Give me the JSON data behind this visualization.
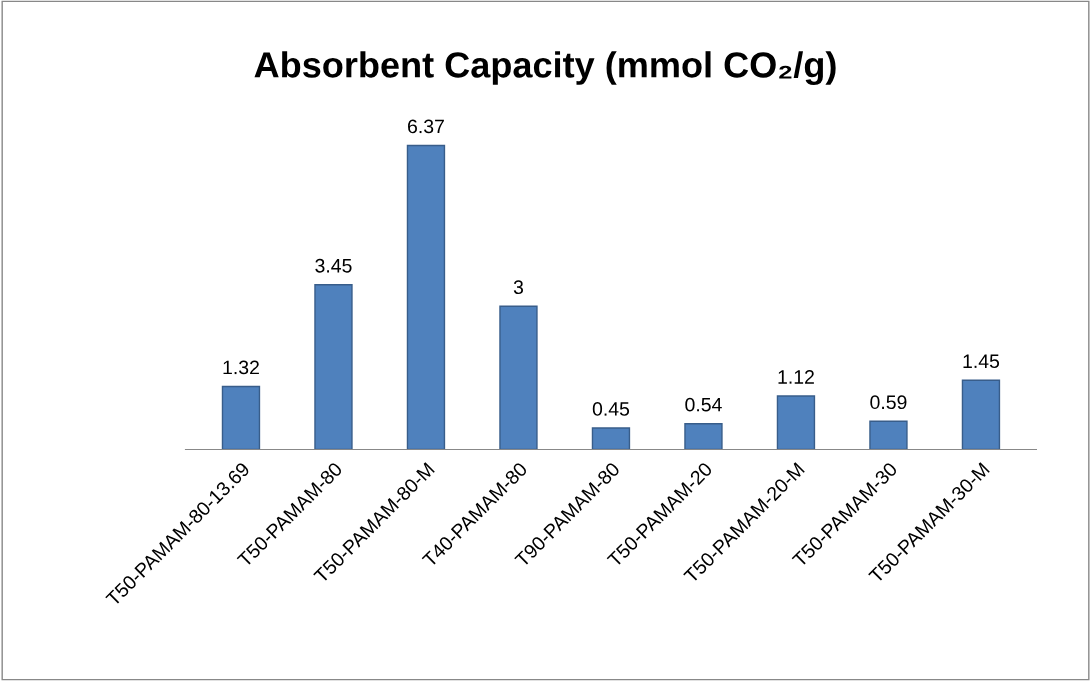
{
  "chart_data": {
    "type": "bar",
    "title": "Absorbent Capacity (mmol CO₂/g)",
    "categories": [
      "T50-PAMAM-80-13.69",
      "T50-PAMAM-80",
      "T50-PAMAM-80-M",
      "T40-PAMAM-80",
      "T90-PAMAM-80",
      "T50-PAMAM-20",
      "T50-PAMAM-20-M",
      "T50-PAMAM-30",
      "T50-PAMAM-30-M"
    ],
    "values": [
      1.32,
      3.45,
      6.37,
      3,
      0.45,
      0.54,
      1.12,
      0.59,
      1.45
    ],
    "color": "#4f81bd",
    "data_labels": true,
    "grid": false,
    "legend": false
  }
}
